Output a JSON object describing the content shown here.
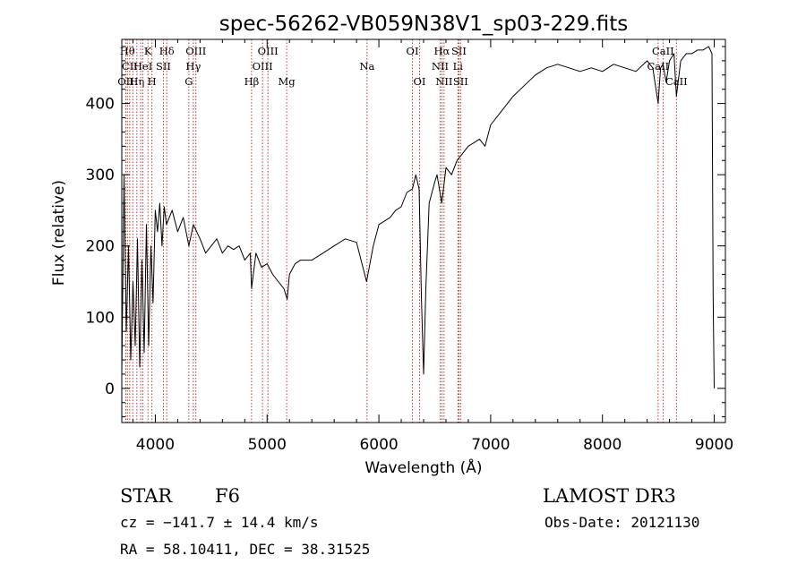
{
  "chart_data": {
    "type": "line",
    "title": "spec-56262-VB059N38V1_sp03-229.fits",
    "xlabel": "Wavelength (Å)",
    "ylabel": "Flux (relative)",
    "xlim": [
      3700,
      9100
    ],
    "ylim": [
      -48,
      490
    ],
    "xticks": [
      4000,
      5000,
      6000,
      7000,
      8000,
      9000
    ],
    "yticks": [
      0,
      100,
      200,
      300,
      400
    ],
    "grid": false,
    "series": [
      {
        "x": [
          3700,
          3720,
          3740,
          3760,
          3780,
          3800,
          3820,
          3840,
          3860,
          3880,
          3900,
          3920,
          3940,
          3960,
          3980,
          4000,
          4020,
          4040,
          4060,
          4080,
          4100,
          4150,
          4200,
          4250,
          4300,
          4340,
          4400,
          4450,
          4500,
          4550,
          4600,
          4650,
          4700,
          4750,
          4800,
          4850,
          4861,
          4900,
          4950,
          5000,
          5050,
          5100,
          5150,
          5180,
          5200,
          5250,
          5300,
          5400,
          5500,
          5600,
          5700,
          5800,
          5890,
          5950,
          6000,
          6050,
          6100,
          6150,
          6200,
          6250,
          6300,
          6330,
          6360,
          6380,
          6400,
          6420,
          6450,
          6500,
          6520,
          6563,
          6600,
          6650,
          6700,
          6750,
          6800,
          6850,
          6900,
          6950,
          7000,
          7100,
          7200,
          7300,
          7400,
          7500,
          7600,
          7700,
          7800,
          7900,
          8000,
          8100,
          8200,
          8300,
          8400,
          8450,
          8498,
          8520,
          8542,
          8570,
          8600,
          8640,
          8662,
          8700,
          8750,
          8800,
          8850,
          8900,
          8950,
          8980,
          8990,
          9000
        ],
        "y": [
          20,
          300,
          80,
          200,
          40,
          150,
          60,
          210,
          30,
          180,
          50,
          230,
          60,
          200,
          120,
          250,
          220,
          260,
          200,
          255,
          230,
          250,
          220,
          240,
          200,
          230,
          210,
          190,
          200,
          210,
          190,
          200,
          195,
          200,
          180,
          190,
          140,
          190,
          170,
          175,
          160,
          150,
          140,
          125,
          160,
          175,
          180,
          180,
          190,
          200,
          210,
          205,
          150,
          200,
          230,
          235,
          240,
          250,
          255,
          275,
          280,
          300,
          280,
          130,
          20,
          140,
          260,
          290,
          300,
          260,
          310,
          300,
          320,
          330,
          340,
          345,
          350,
          340,
          370,
          390,
          410,
          425,
          440,
          450,
          455,
          450,
          445,
          450,
          445,
          455,
          450,
          445,
          460,
          450,
          400,
          450,
          455,
          430,
          460,
          470,
          410,
          460,
          470,
          470,
          475,
          475,
          480,
          470,
          130,
          0
        ]
      }
    ],
    "lines": [
      {
        "w": 3736,
        "label": "OII",
        "row": 3
      },
      {
        "w": 3750,
        "label": "Hθ",
        "row": 1
      },
      {
        "w": 3771,
        "label": "CII",
        "row": 2
      },
      {
        "w": 3798,
        "label": "",
        "row": 0
      },
      {
        "w": 3835,
        "label": "Hη",
        "row": 3
      },
      {
        "w": 3869,
        "label": "",
        "row": 0
      },
      {
        "w": 3889,
        "label": "HeI",
        "row": 2
      },
      {
        "w": 3934,
        "label": "K",
        "row": 1
      },
      {
        "w": 3970,
        "label": "H",
        "row": 3
      },
      {
        "w": 4072,
        "label": "SII",
        "row": 2
      },
      {
        "w": 4102,
        "label": "Hδ",
        "row": 1
      },
      {
        "w": 4300,
        "label": "G",
        "row": 3
      },
      {
        "w": 4340,
        "label": "Hγ",
        "row": 2
      },
      {
        "w": 4363,
        "label": "OIII",
        "row": 1
      },
      {
        "w": 4861,
        "label": "Hβ",
        "row": 3
      },
      {
        "w": 4959,
        "label": "OIII",
        "row": 2
      },
      {
        "w": 5007,
        "label": "OIII",
        "row": 1
      },
      {
        "w": 5175,
        "label": "Mg",
        "row": 3
      },
      {
        "w": 5894,
        "label": "Na",
        "row": 2
      },
      {
        "w": 6300,
        "label": "OI",
        "row": 1
      },
      {
        "w": 6364,
        "label": "OI",
        "row": 3
      },
      {
        "w": 6548,
        "label": "NII",
        "row": 2
      },
      {
        "w": 6563,
        "label": "Hα",
        "row": 1
      },
      {
        "w": 6583,
        "label": "NII",
        "row": 3
      },
      {
        "w": 6707,
        "label": "Li",
        "row": 2
      },
      {
        "w": 6716,
        "label": "SII",
        "row": 1
      },
      {
        "w": 6731,
        "label": "SII",
        "row": 3
      },
      {
        "w": 8498,
        "label": "CaII",
        "row": 2
      },
      {
        "w": 8542,
        "label": "CaII",
        "row": 1
      },
      {
        "w": 8662,
        "label": "CaII",
        "row": 3
      }
    ]
  },
  "info": {
    "object_class": "STAR",
    "subclass": "F6",
    "survey": "LAMOST DR3",
    "cz": "cz = −141.7 ± 14.4 km/s",
    "obs_date": "Obs-Date: 20121130",
    "radec": "RA =  58.10411, DEC =  38.31525"
  },
  "colors": {
    "line_marker": "#b22222",
    "spectrum": "#000000"
  }
}
